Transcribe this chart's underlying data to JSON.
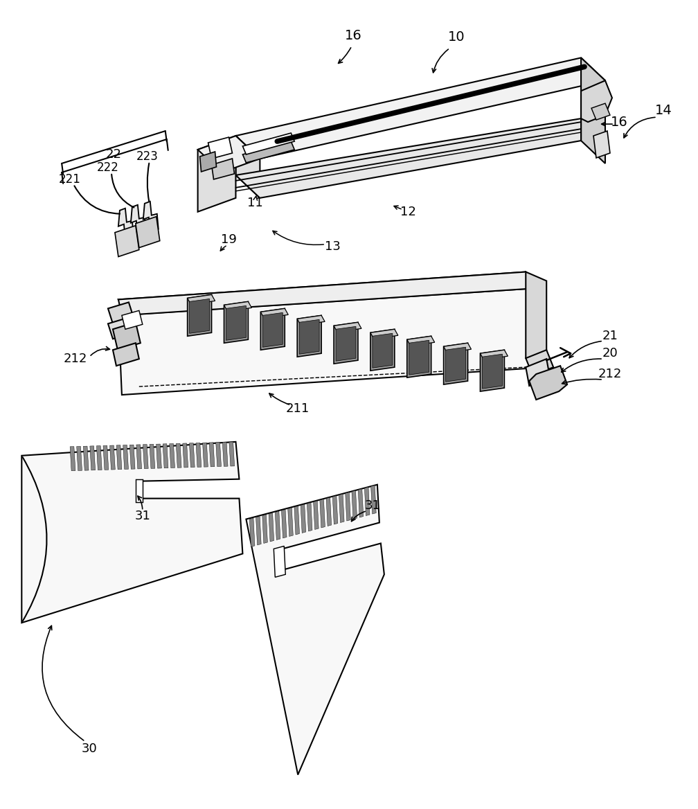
{
  "bg": "#ffffff",
  "lc": "#000000",
  "lw": 1.5,
  "fig_w": 10.08,
  "fig_h": 11.68,
  "dpi": 100,
  "gray1": "#f0f0f0",
  "gray2": "#e0e0e0",
  "gray3": "#c8c8c8",
  "gray4": "#a0a0a0",
  "gray5": "#888888"
}
